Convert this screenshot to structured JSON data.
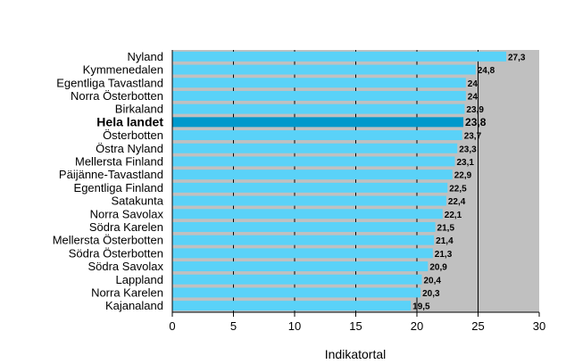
{
  "chart_data": {
    "type": "bar",
    "orientation": "horizontal",
    "title": "",
    "xlabel": "Indikatortal",
    "ylabel": "",
    "xlim": [
      0,
      30
    ],
    "xticks": [
      0,
      5,
      10,
      15,
      20,
      25,
      30
    ],
    "grid": "vertical",
    "highlight": "Hela landet",
    "colors": {
      "bar": "#5ad2f8",
      "highlight_bar": "#0099cc",
      "plot_background": "#c0c0c0",
      "gridline": "#000000"
    },
    "categories": [
      "Nyland",
      "Kymmenedalen",
      "Egentliga Tavastland",
      "Norra Österbotten",
      "Birkaland",
      "Hela landet",
      "Österbotten",
      "Östra Nyland",
      "Mellersta Finland",
      "Päijänne-Tavastland",
      "Egentliga Finland",
      "Satakunta",
      "Norra Savolax",
      "Södra Karelen",
      "Mellersta Österbotten",
      "Södra Österbotten",
      "Södra Savolax",
      "Lappland",
      "Norra Karelen",
      "Kajanaland"
    ],
    "values": [
      27.3,
      24.8,
      24,
      24,
      23.9,
      23.8,
      23.7,
      23.3,
      23.1,
      22.9,
      22.5,
      22.4,
      22.1,
      21.5,
      21.4,
      21.3,
      20.9,
      20.4,
      20.3,
      19.5
    ],
    "value_labels": [
      "27,3",
      "24,8",
      "24",
      "24",
      "23,9",
      "23,8",
      "23,7",
      "23,3",
      "23,1",
      "22,9",
      "22,5",
      "22,4",
      "22,1",
      "21,5",
      "21,4",
      "21,3",
      "20,9",
      "20,4",
      "20,3",
      "19,5"
    ]
  }
}
